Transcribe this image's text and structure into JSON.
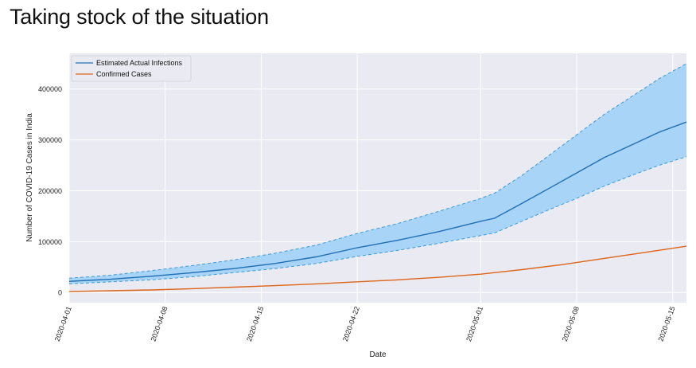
{
  "page": {
    "heading": "Taking stock of the situation"
  },
  "chart_data": {
    "type": "line",
    "title": "",
    "xlabel": "Date",
    "ylabel": "Number of COVID-19 Cases in India",
    "x_ticks": [
      "2020-04-01",
      "2020-04-08",
      "2020-04-15",
      "2020-04-22",
      "2020-05-01",
      "2020-05-08",
      "2020-05-15"
    ],
    "y_ticks": [
      0,
      100000,
      200000,
      300000,
      400000
    ],
    "xlim": [
      "2020-04-01",
      "2020-05-16"
    ],
    "ylim": [
      -20000,
      470000
    ],
    "grid": true,
    "legend_position": "top-left",
    "colors": {
      "background": "#eaeaf2",
      "estimated": "#1f6fb4",
      "band_fill": "#a7d4f7",
      "band_edge": "#3a9bd9",
      "confirmed": "#dd6418",
      "grid": "#ffffff"
    },
    "series": [
      {
        "name": "Estimated Actual Infections",
        "x": [
          "2020-04-01",
          "2020-04-04",
          "2020-04-07",
          "2020-04-10",
          "2020-04-13",
          "2020-04-16",
          "2020-04-19",
          "2020-04-22",
          "2020-04-25",
          "2020-04-28",
          "2020-05-01",
          "2020-05-02",
          "2020-05-04",
          "2020-05-06",
          "2020-05-08",
          "2020-05-10",
          "2020-05-12",
          "2020-05-14",
          "2020-05-16"
        ],
        "y": [
          22000,
          26000,
          32000,
          39000,
          47000,
          57000,
          70000,
          88000,
          103000,
          120000,
          140000,
          146000,
          175000,
          205000,
          235000,
          265000,
          290000,
          315000,
          335000
        ],
        "lower": [
          17000,
          21000,
          25000,
          31000,
          39000,
          47000,
          57000,
          71000,
          83000,
          97000,
          112000,
          117000,
          140000,
          163000,
          185000,
          209000,
          230000,
          250000,
          267000
        ],
        "upper": [
          28000,
          34000,
          43000,
          53000,
          64000,
          77000,
          93000,
          116000,
          136000,
          160000,
          185000,
          195000,
          230000,
          270000,
          310000,
          350000,
          385000,
          420000,
          450000
        ]
      },
      {
        "name": "Confirmed Cases",
        "x": [
          "2020-04-01",
          "2020-04-04",
          "2020-04-07",
          "2020-04-10",
          "2020-04-13",
          "2020-04-16",
          "2020-04-19",
          "2020-04-22",
          "2020-04-25",
          "2020-04-28",
          "2020-05-01",
          "2020-05-04",
          "2020-05-07",
          "2020-05-10",
          "2020-05-13",
          "2020-05-16"
        ],
        "y": [
          2000,
          3500,
          5000,
          7500,
          10500,
          13500,
          17000,
          21000,
          25000,
          30000,
          36000,
          45000,
          55000,
          67000,
          79000,
          91000
        ]
      }
    ]
  }
}
